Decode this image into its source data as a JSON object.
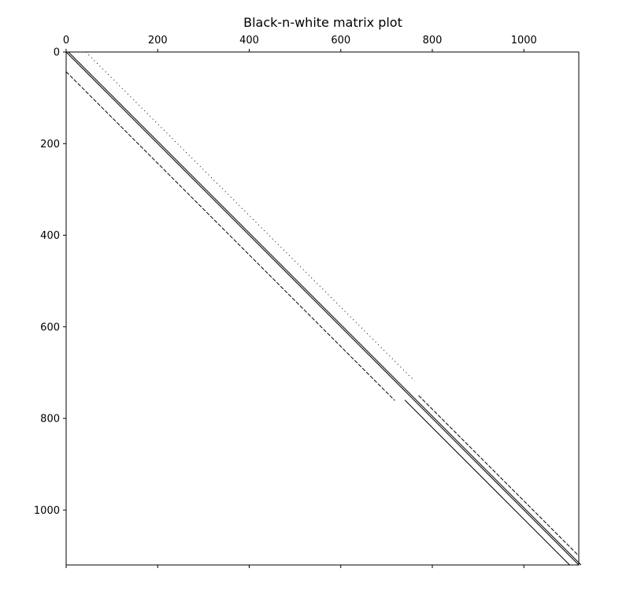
{
  "chart_data": {
    "type": "spy",
    "title": "Black-n-white matrix plot",
    "xlabel": "",
    "ylabel": "",
    "rows": 1120,
    "cols": 1120,
    "xlim": [
      0,
      1120
    ],
    "ylim": [
      1120,
      0
    ],
    "x_axis_position": "top",
    "y_axis_inverted": true,
    "grid": false,
    "x_ticks": [
      0,
      200,
      400,
      600,
      800,
      1000
    ],
    "x_tick_labels": [
      "0",
      "200",
      "400",
      "600",
      "800",
      "1000"
    ],
    "y_ticks": [
      0,
      200,
      400,
      600,
      800,
      1000
    ],
    "y_tick_labels": [
      "0",
      "200",
      "400",
      "600",
      "800",
      "1000"
    ],
    "marker_color": "#000000",
    "diagonals": [
      {
        "offset": 0,
        "row_start": 0,
        "row_end": 1120,
        "pattern": "dense"
      },
      {
        "offset": 5,
        "row_start": 0,
        "row_end": 1120,
        "pattern": "dense"
      },
      {
        "offset": 43,
        "row_start": 0,
        "row_end": 718,
        "pattern": "dotted"
      },
      {
        "offset": -43,
        "row_start": 43,
        "row_end": 761,
        "pattern": "dashed"
      },
      {
        "offset": 20,
        "row_start": 750,
        "row_end": 1100,
        "pattern": "dashed"
      },
      {
        "offset": -20,
        "row_start": 760,
        "row_end": 1120,
        "pattern": "dense"
      }
    ]
  }
}
